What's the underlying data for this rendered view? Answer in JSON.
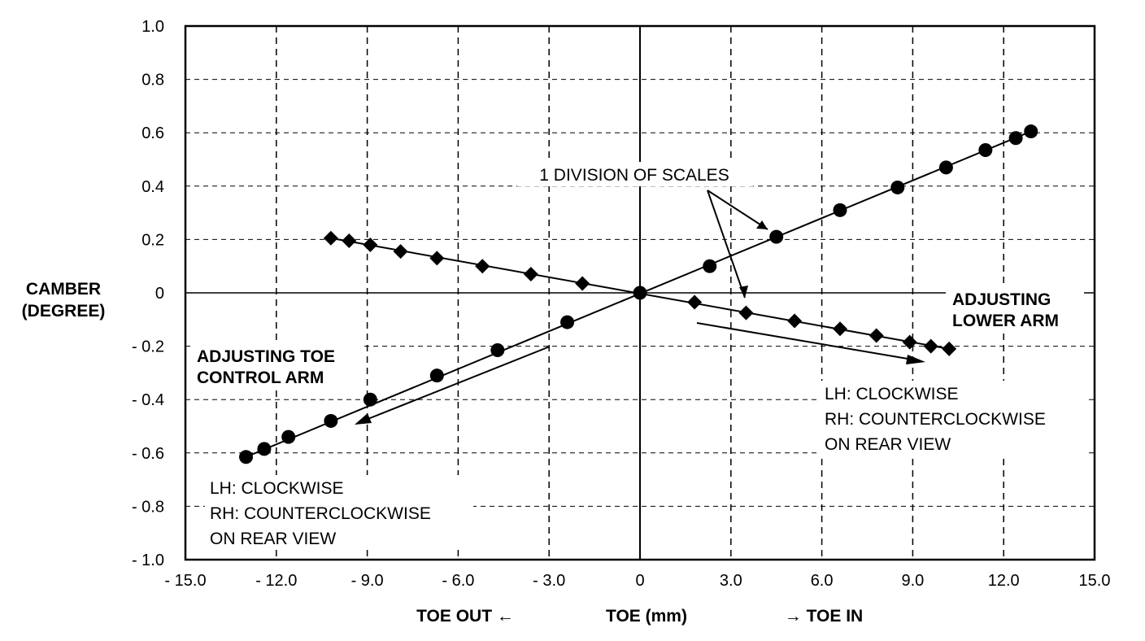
{
  "chart_data": {
    "type": "scatter",
    "xlim": [
      -15.0,
      15.0
    ],
    "ylim": [
      -1.0,
      1.0
    ],
    "x_ticks": [
      "- 15.0",
      "- 12.0",
      "- 9.0",
      "- 6.0",
      "- 3.0",
      "0",
      "3.0",
      "6.0",
      "9.0",
      "12.0",
      "15.0"
    ],
    "y_ticks": [
      "1.0",
      "0.8",
      "0.6",
      "0.4",
      "0.2",
      "0",
      "- 0.2",
      "- 0.4",
      "- 0.6",
      "- 0.8",
      "- 1.0"
    ],
    "grid": true,
    "ylabel_lines": [
      "CAMBER",
      "(DEGREE)"
    ],
    "xlabel": {
      "left": "TOE OUT ←",
      "center": "TOE (mm)",
      "right": "→ TOE IN"
    },
    "series": [
      {
        "marker": "circle",
        "color": "#000000",
        "x": [
          -13.0,
          -12.4,
          -11.6,
          -10.2,
          -8.9,
          -6.7,
          -4.7,
          -2.4,
          0.0,
          2.3,
          4.5,
          6.6,
          8.5,
          10.1,
          11.4,
          12.4,
          12.9
        ],
        "y": [
          -0.615,
          -0.585,
          -0.54,
          -0.48,
          -0.4,
          -0.31,
          -0.215,
          -0.11,
          0.0,
          0.1,
          0.21,
          0.31,
          0.395,
          0.47,
          0.535,
          0.58,
          0.605
        ]
      },
      {
        "marker": "diamond",
        "color": "#000000",
        "x": [
          -10.2,
          -9.6,
          -8.9,
          -7.9,
          -6.7,
          -5.2,
          -3.6,
          -1.9,
          0.0,
          1.8,
          3.5,
          5.1,
          6.6,
          7.8,
          8.9,
          9.6,
          10.2
        ],
        "y": [
          0.205,
          0.195,
          0.18,
          0.155,
          0.13,
          0.1,
          0.07,
          0.035,
          0.0,
          -0.035,
          -0.075,
          -0.105,
          -0.135,
          -0.16,
          -0.185,
          -0.2,
          -0.21
        ]
      }
    ],
    "annotations": {
      "division": "1 DIVISION OF SCALES",
      "lower_arm_lines": [
        "ADJUSTING",
        "LOWER ARM"
      ],
      "toe_arm_lines": [
        "ADJUSTING TOE",
        "CONTROL ARM"
      ],
      "right_note_lines": [
        "LH: CLOCKWISE",
        "RH: COUNTERCLOCKWISE",
        "ON REAR VIEW"
      ],
      "left_note_lines": [
        "LH: CLOCKWISE",
        "RH: COUNTERCLOCKWISE",
        "ON REAR VIEW"
      ]
    }
  }
}
